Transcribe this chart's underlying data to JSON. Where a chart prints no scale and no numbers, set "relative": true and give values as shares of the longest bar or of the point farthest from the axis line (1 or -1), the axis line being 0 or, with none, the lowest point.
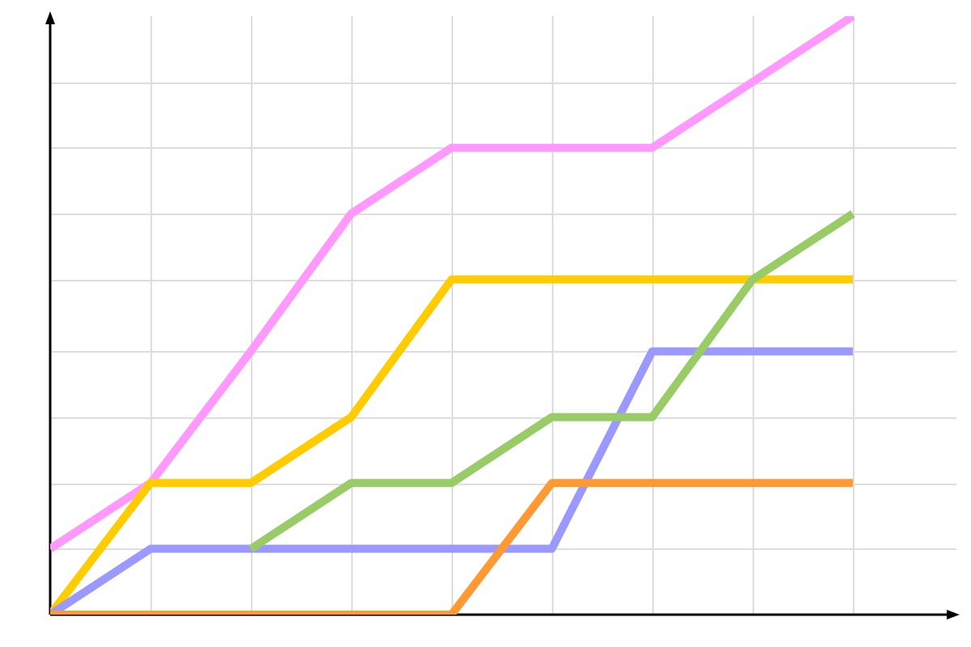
{
  "chart_data": {
    "type": "line",
    "relative": true,
    "grid": true,
    "marker": "none",
    "line_style": "solid",
    "categories": [
      null,
      null,
      null,
      null,
      null,
      null,
      null,
      null,
      null
    ],
    "series": [
      {
        "color": "#ff99ff",
        "values": [
          0.11,
          0.22,
          0.44,
          0.67,
          0.78,
          0.78,
          0.78,
          0.89,
          1
        ]
      },
      {
        "color": "#ffcc00",
        "values": [
          0,
          0.22,
          0.22,
          0.33,
          0.56,
          0.56,
          0.56,
          0.56,
          0.56
        ]
      },
      {
        "color": "#9999ff",
        "values": [
          0,
          0.11,
          0.11,
          0.11,
          0.11,
          0.11,
          0.44,
          0.44,
          0.44
        ]
      },
      {
        "color": "#99cc66",
        "values": [
          null,
          null,
          0.11,
          0.22,
          0.22,
          0.33,
          0.33,
          0.56,
          0.67
        ]
      },
      {
        "color": "#ff9933",
        "values": [
          0,
          0,
          0,
          0,
          0,
          0.22,
          0.22,
          0.22,
          0.22
        ]
      }
    ]
  }
}
